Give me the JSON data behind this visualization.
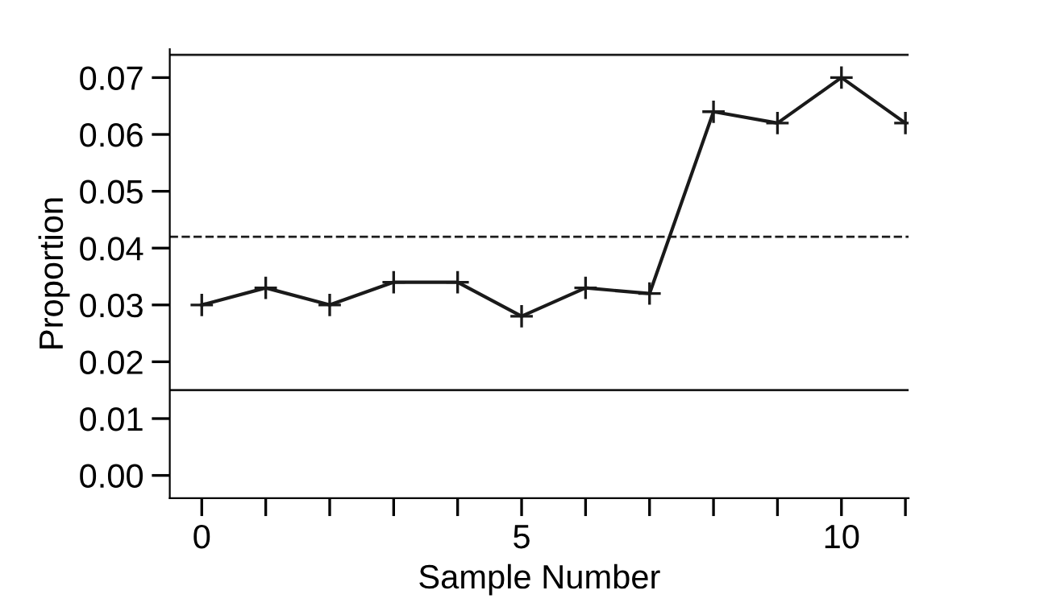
{
  "chart_data": {
    "type": "line",
    "xlabel": "Sample Number",
    "ylabel": "Proportion",
    "x": [
      0,
      1,
      2,
      3,
      4,
      5,
      6,
      7,
      8,
      9,
      10,
      11
    ],
    "series": [
      {
        "color": "#1a1a1a",
        "values": [
          0.03,
          0.033,
          0.03,
          0.034,
          0.034,
          0.028,
          0.033,
          0.032,
          0.064,
          0.062,
          0.07,
          0.062
        ]
      }
    ],
    "marker": "cross",
    "line_style": "solid",
    "grid": false,
    "legend": false,
    "xlim": [
      -0.5,
      11.05
    ],
    "ylim": [
      -0.004,
      0.075
    ],
    "xticks": [
      0,
      {
        "value": 1,
        "label": null
      },
      {
        "value": 2,
        "label": null
      },
      {
        "value": 3,
        "label": null
      },
      {
        "value": 4,
        "label": null
      },
      5,
      {
        "value": 6,
        "label": null
      },
      {
        "value": 7,
        "label": null
      },
      {
        "value": 8,
        "label": null
      },
      {
        "value": 9,
        "label": null
      },
      10,
      {
        "value": 11,
        "label": null
      }
    ],
    "yticks": [
      {
        "value": 0.0,
        "label": "0.00"
      },
      {
        "value": 0.01,
        "label": "0.01"
      },
      {
        "value": 0.02,
        "label": "0.02"
      },
      {
        "value": 0.03,
        "label": "0.03"
      },
      {
        "value": 0.04,
        "label": "0.04"
      },
      {
        "value": 0.05,
        "label": "0.05"
      },
      {
        "value": 0.06,
        "label": "0.06"
      },
      {
        "value": 0.07,
        "label": "0.07"
      }
    ],
    "ref_lines": [
      {
        "axis": "y",
        "value": 0.074,
        "label": null,
        "color": "#1a1a1a",
        "line_style": "solid"
      },
      {
        "axis": "y",
        "value": 0.042,
        "label": null,
        "color": "#1a1a1a",
        "line_style": "dashed"
      },
      {
        "axis": "y",
        "value": 0.015,
        "label": null,
        "color": "#1a1a1a",
        "line_style": "solid"
      }
    ]
  }
}
